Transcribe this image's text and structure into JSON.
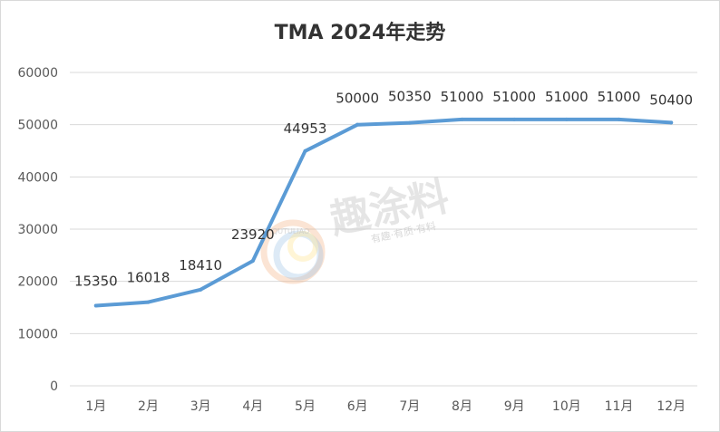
{
  "watermark": {
    "text": "趣涂料",
    "subtext": "有趣·有质·有料",
    "logo_text": "QUTULIAO"
  },
  "chart_data": {
    "type": "line",
    "title": "TMA 2024年走势",
    "xlabel": "",
    "ylabel": "",
    "categories": [
      "1月",
      "2月",
      "3月",
      "4月",
      "5月",
      "6月",
      "7月",
      "8月",
      "9月",
      "10月",
      "11月",
      "12月"
    ],
    "values": [
      15350,
      16018,
      18410,
      23920,
      44953,
      50000,
      50350,
      51000,
      51000,
      51000,
      51000,
      50400
    ],
    "ylim": [
      0,
      60000
    ],
    "yticks": [
      0,
      10000,
      20000,
      30000,
      40000,
      50000,
      60000
    ],
    "grid": true,
    "legend": "none",
    "line_color": "#5b9bd5",
    "grid_color": "#d9d9d9"
  }
}
